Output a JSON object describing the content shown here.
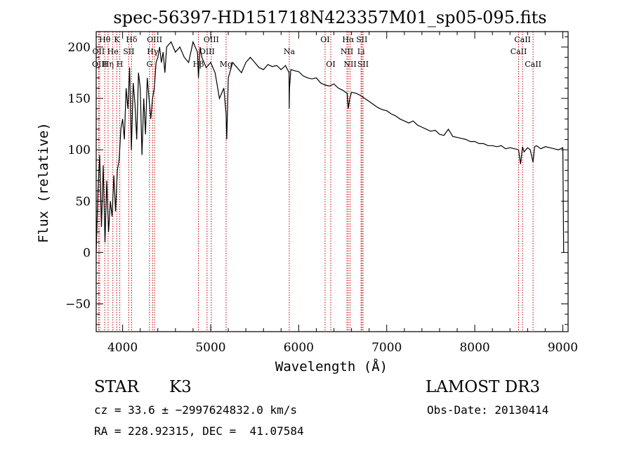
{
  "chart_data": {
    "type": "line",
    "title": "spec-56397-HD151718N423357M01_sp05-095.fits",
    "xlabel": "Wavelength (Å)",
    "ylabel": "Flux (relative)",
    "xlim": [
      3700,
      9060
    ],
    "ylim": [
      -77,
      215
    ],
    "x_ticks": [
      4000,
      5000,
      6000,
      7000,
      8000,
      9000
    ],
    "y_ticks": [
      -50,
      0,
      50,
      100,
      150,
      200
    ],
    "series": [
      {
        "name": "flux",
        "x": [
          3700,
          3720,
          3740,
          3760,
          3780,
          3800,
          3820,
          3840,
          3860,
          3880,
          3900,
          3920,
          3940,
          3960,
          3980,
          4000,
          4020,
          4040,
          4060,
          4080,
          4100,
          4120,
          4140,
          4160,
          4180,
          4200,
          4220,
          4240,
          4260,
          4280,
          4300,
          4320,
          4340,
          4360,
          4380,
          4400,
          4420,
          4440,
          4460,
          4480,
          4500,
          4550,
          4600,
          4650,
          4700,
          4750,
          4800,
          4850,
          4861,
          4880,
          4900,
          4950,
          5000,
          5050,
          5100,
          5150,
          5175,
          5183,
          5200,
          5250,
          5300,
          5350,
          5400,
          5450,
          5500,
          5550,
          5600,
          5650,
          5700,
          5750,
          5800,
          5850,
          5890,
          5893,
          5896,
          5910,
          5950,
          6000,
          6050,
          6100,
          6150,
          6200,
          6250,
          6300,
          6350,
          6400,
          6450,
          6500,
          6550,
          6563,
          6580,
          6600,
          6650,
          6700,
          6750,
          6800,
          6850,
          6900,
          6950,
          7000,
          7050,
          7100,
          7150,
          7200,
          7250,
          7300,
          7350,
          7400,
          7450,
          7500,
          7550,
          7600,
          7650,
          7700,
          7750,
          7800,
          7850,
          7900,
          7950,
          8000,
          8050,
          8100,
          8150,
          8200,
          8250,
          8300,
          8350,
          8400,
          8450,
          8498,
          8520,
          8542,
          8560,
          8600,
          8630,
          8662,
          8680,
          8700,
          8750,
          8800,
          8850,
          8900,
          8950,
          9000,
          9005,
          9010
        ],
        "values": [
          0,
          60,
          95,
          25,
          85,
          10,
          70,
          20,
          50,
          35,
          75,
          40,
          80,
          90,
          120,
          130,
          110,
          160,
          140,
          180,
          100,
          165,
          145,
          110,
          175,
          160,
          95,
          150,
          115,
          170,
          150,
          130,
          150,
          160,
          185,
          190,
          200,
          185,
          195,
          175,
          200,
          205,
          195,
          200,
          190,
          185,
          205,
          195,
          170,
          200,
          190,
          180,
          185,
          175,
          150,
          160,
          135,
          110,
          170,
          185,
          180,
          175,
          185,
          190,
          185,
          180,
          178,
          183,
          181,
          182,
          178,
          182,
          175,
          140,
          160,
          178,
          177,
          176,
          172,
          170,
          169,
          170,
          165,
          163,
          162,
          164,
          160,
          158,
          155,
          140,
          150,
          156,
          155,
          153,
          150,
          147,
          144,
          141,
          139,
          138,
          135,
          133,
          130,
          128,
          126,
          128,
          124,
          122,
          120,
          118,
          119,
          115,
          114,
          120,
          113,
          112,
          111,
          110,
          108,
          108,
          106,
          106,
          104,
          104,
          103,
          104,
          101,
          102,
          101,
          100,
          86,
          103,
          98,
          102,
          100,
          88,
          103,
          104,
          101,
          103,
          102,
          101,
          100,
          102,
          50,
          0
        ]
      }
    ],
    "line_markers": [
      {
        "label": "Hθ",
        "wavelength": 3798,
        "row": 1
      },
      {
        "label": "OII",
        "wavelength": 3727,
        "row": 2
      },
      {
        "label": "OIII",
        "wavelength": 3740,
        "row": 3
      },
      {
        "label": "K",
        "wavelength": 3934,
        "row": 1
      },
      {
        "label": "He",
        "wavelength": 3889,
        "row": 2
      },
      {
        "label": "Hη",
        "wavelength": 3835,
        "row": 3
      },
      {
        "label": "Hδ",
        "wavelength": 4102,
        "row": 1
      },
      {
        "label": "SII",
        "wavelength": 4070,
        "row": 2
      },
      {
        "label": "H",
        "wavelength": 3968,
        "row": 3
      },
      {
        "label": "OIII",
        "wavelength": 4363,
        "row": 1
      },
      {
        "label": "Hγ",
        "wavelength": 4341,
        "row": 2
      },
      {
        "label": "G",
        "wavelength": 4305,
        "row": 3
      },
      {
        "label": "OIII",
        "wavelength": 5007,
        "row": 1
      },
      {
        "label": "OIII",
        "wavelength": 4959,
        "row": 2
      },
      {
        "label": "Hβ",
        "wavelength": 4861,
        "row": 3
      },
      {
        "label": "Mg",
        "wavelength": 5175,
        "row": 3
      },
      {
        "label": "Na",
        "wavelength": 5893,
        "row": 2
      },
      {
        "label": "OI",
        "wavelength": 6300,
        "row": 1
      },
      {
        "label": "OI",
        "wavelength": 6364,
        "row": 3
      },
      {
        "label": "Hα",
        "wavelength": 6563,
        "row": 1
      },
      {
        "label": "NII",
        "wavelength": 6548,
        "row": 2
      },
      {
        "label": "NII",
        "wavelength": 6584,
        "row": 3
      },
      {
        "label": "SII",
        "wavelength": 6717,
        "row": 1
      },
      {
        "label": "Li",
        "wavelength": 6708,
        "row": 2
      },
      {
        "label": "SII",
        "wavelength": 6731,
        "row": 3
      },
      {
        "label": "CaII",
        "wavelength": 8542,
        "row": 1
      },
      {
        "label": "CaII",
        "wavelength": 8498,
        "row": 2
      },
      {
        "label": "CaII",
        "wavelength": 8662,
        "row": 3
      }
    ],
    "marker_color": "#c00000",
    "line_color": "#000000"
  },
  "info": {
    "object_type": "STAR",
    "subclass": "K3",
    "survey": "LAMOST DR3",
    "cz": "cz = 33.6 ± −2997624832.0 km/s",
    "obs_date": "Obs-Date: 20130414",
    "coords": "RA = 228.92315, DEC =  41.07584"
  }
}
